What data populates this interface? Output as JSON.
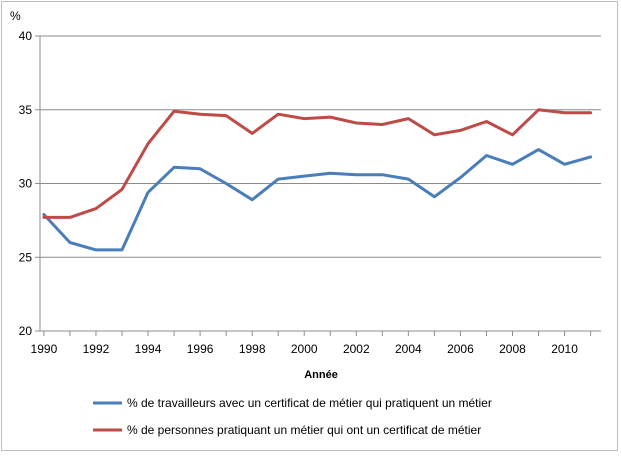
{
  "chart_data": {
    "type": "line",
    "ylabel": "%",
    "xlabel": "Année",
    "ylim": [
      20,
      40
    ],
    "yticks": [
      20,
      25,
      30,
      35,
      40
    ],
    "xlim": [
      1989.85,
      2011.4
    ],
    "xticks": [
      1990,
      1992,
      1994,
      1996,
      1998,
      2000,
      2002,
      2004,
      2006,
      2008,
      2010
    ],
    "xtick_labels": [
      "1990",
      "1992",
      "1994",
      "1996",
      "1998",
      "2000",
      "2002",
      "2004",
      "2006",
      "2008",
      "2010"
    ],
    "ytick_labels": [
      "20",
      "25",
      "30",
      "35",
      "40"
    ],
    "grid": "horizontal",
    "legend_position": "bottom",
    "x": [
      1990,
      1991,
      1992,
      1993,
      1994,
      1995,
      1996,
      1997,
      1998,
      1999,
      2000,
      2001,
      2002,
      2003,
      2004,
      2005,
      2006,
      2007,
      2008,
      2009,
      2010,
      2011
    ],
    "series": [
      {
        "name": "% de travailleurs avec un certificat de métier qui pratiquent un métier",
        "color": "#4a7ebb",
        "values": [
          27.9,
          26.0,
          25.5,
          25.5,
          29.4,
          31.1,
          31.0,
          30.0,
          28.9,
          30.3,
          30.5,
          30.7,
          30.6,
          30.6,
          30.3,
          29.1,
          30.4,
          31.9,
          31.3,
          32.3,
          31.3,
          31.8
        ]
      },
      {
        "name": "% de personnes pratiquant un métier qui ont un certificat de métier",
        "color": "#be4b48",
        "values": [
          27.7,
          27.7,
          28.3,
          29.6,
          32.7,
          34.9,
          34.7,
          34.6,
          33.4,
          34.7,
          34.4,
          34.5,
          34.1,
          34.0,
          34.4,
          33.3,
          33.6,
          34.2,
          33.3,
          35.0,
          34.8,
          34.8
        ]
      }
    ]
  }
}
